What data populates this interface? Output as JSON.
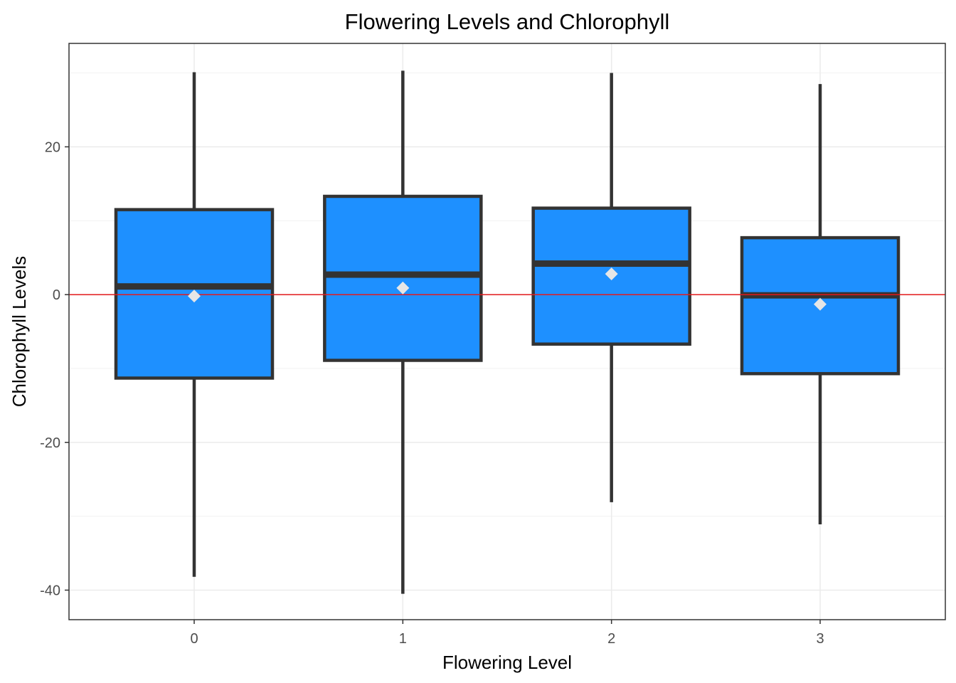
{
  "chart_data": {
    "type": "boxplot",
    "title": "Flowering Levels and Chlorophyll",
    "xlabel": "Flowering Level",
    "ylabel": "Chlorophyll Levels",
    "categories": [
      "0",
      "1",
      "2",
      "3"
    ],
    "ylim": [
      -44,
      34
    ],
    "yticks": [
      -40,
      -20,
      0,
      20
    ],
    "ytick_labels": [
      "-40",
      "-20",
      "0",
      "20"
    ],
    "minor_yticks": [
      -30,
      -10,
      10,
      30
    ],
    "grid": true,
    "legend": "none",
    "reference_line": {
      "y": 0,
      "color": "#e41a1c"
    },
    "box_fill": "#1e90ff",
    "box_stroke": "#333333",
    "mean_marker_color": "#e6e6e6",
    "boxes": [
      {
        "category": "0",
        "whisker_low": -38.2,
        "q1": -11.3,
        "median": 1.1,
        "q3": 11.5,
        "whisker_high": 30.1,
        "mean": -0.2
      },
      {
        "category": "1",
        "whisker_low": -40.5,
        "q1": -8.9,
        "median": 2.7,
        "q3": 13.3,
        "whisker_high": 30.3,
        "mean": 0.9
      },
      {
        "category": "2",
        "whisker_low": -28.1,
        "q1": -6.7,
        "median": 4.2,
        "q3": 11.7,
        "whisker_high": 30.0,
        "mean": 2.8
      },
      {
        "category": "3",
        "whisker_low": -31.1,
        "q1": -10.7,
        "median": -0.1,
        "q3": 7.7,
        "whisker_high": 28.5,
        "mean": -1.3
      }
    ]
  }
}
